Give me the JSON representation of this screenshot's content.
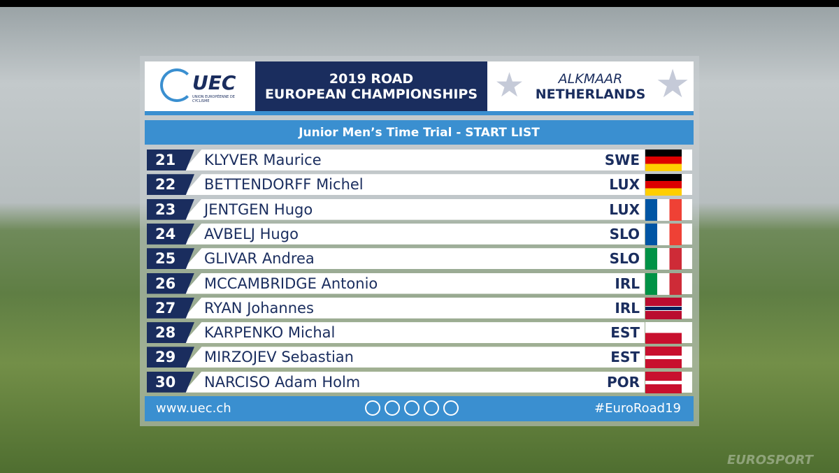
{
  "header": {
    "logo": "UEC",
    "logo_subtitle": "UNION EUROPÉENNE DE CYCLISME",
    "title_line1": "2019 ROAD",
    "title_line2": "EUROPEAN CHAMPIONSHIPS",
    "city": "ALKMAAR",
    "country": "NETHERLANDS"
  },
  "subtitle": "Junior Men’s Time Trial - START LIST",
  "rows": [
    {
      "bib": "21",
      "name": "KLYVER Maurice",
      "nation": "SWE"
    },
    {
      "bib": "22",
      "name": "BETTENDORFF Michel",
      "nation": "LUX"
    },
    {
      "bib": "23",
      "name": "JENTGEN Hugo",
      "nation": "LUX"
    },
    {
      "bib": "24",
      "name": "AVBELJ Hugo",
      "nation": "SLO"
    },
    {
      "bib": "25",
      "name": "GLIVAR Andrea",
      "nation": "SLO"
    },
    {
      "bib": "26",
      "name": "MCCAMBRIDGE Antonio",
      "nation": "IRL"
    },
    {
      "bib": "27",
      "name": "RYAN Johannes",
      "nation": "IRL"
    },
    {
      "bib": "28",
      "name": "KARPENKO Michal",
      "nation": "EST"
    },
    {
      "bib": "29",
      "name": "MIRZOJEV Sebastian",
      "nation": "EST"
    },
    {
      "bib": "30",
      "name": "NARCISO Adam Holm",
      "nation": "POR"
    }
  ],
  "footer": {
    "url": "www.uec.ch",
    "hashtag": "#EuroRoad19"
  },
  "watermark": "EUROSPORT"
}
